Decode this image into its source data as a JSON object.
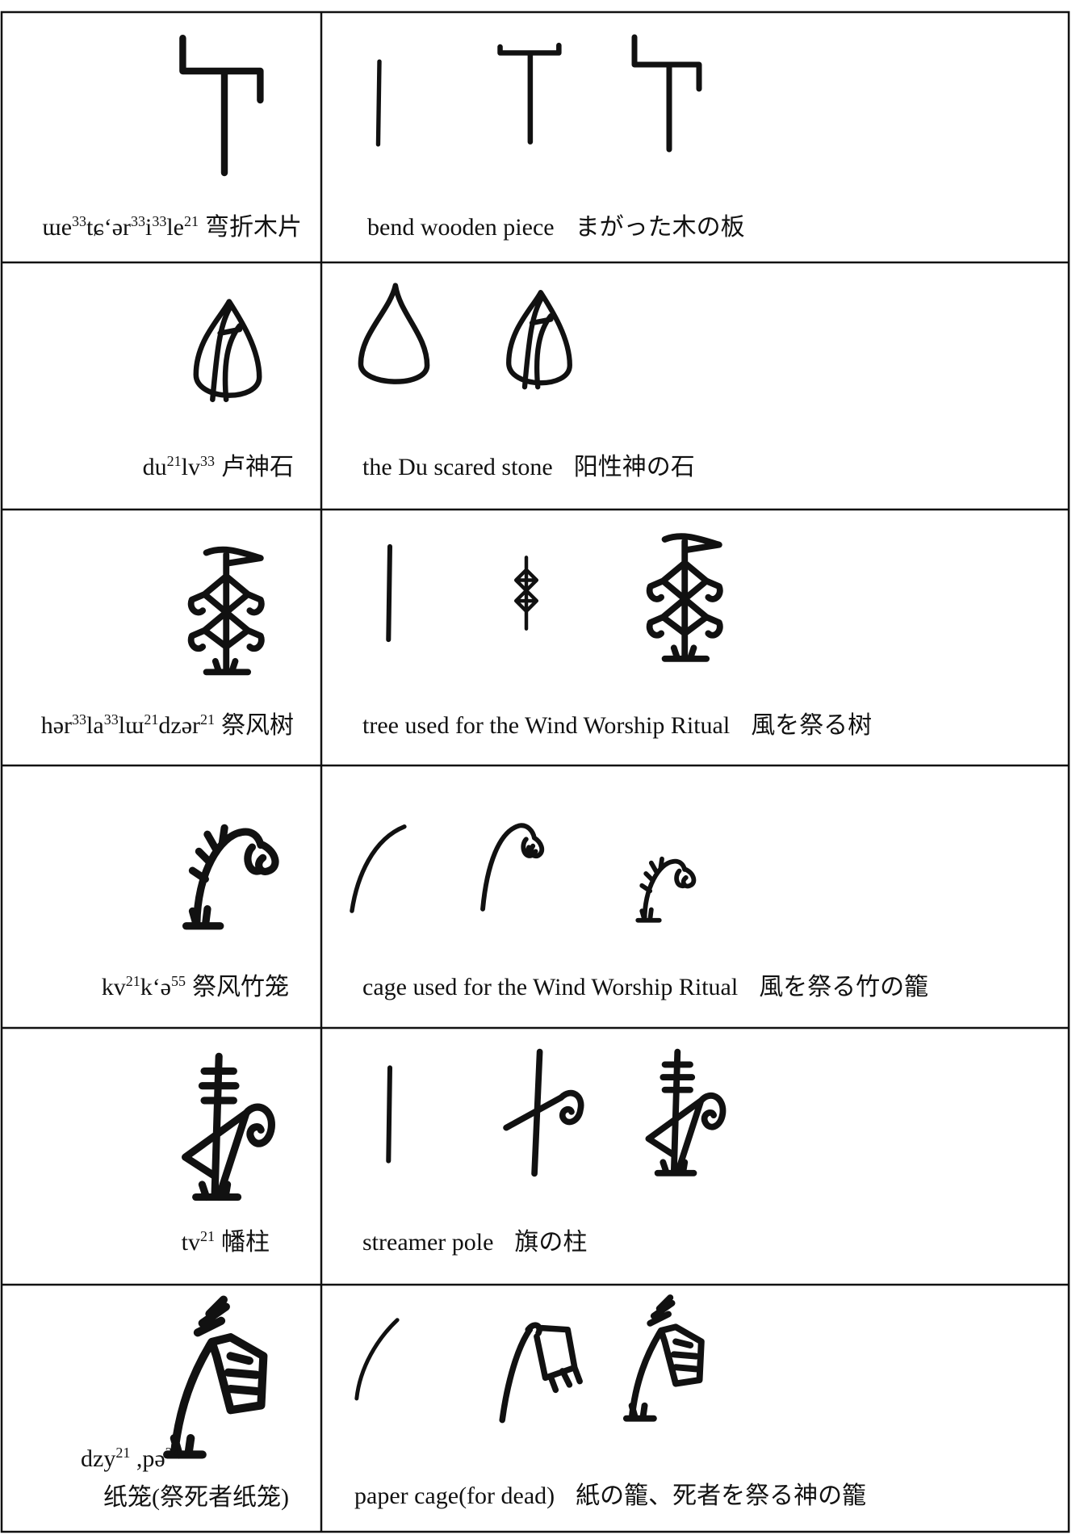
{
  "table": {
    "rows": [
      {
        "syllables": [
          {
            "text": "ɯe",
            "tone": "33"
          },
          {
            "text": "tɕʻər",
            "tone": "33"
          },
          {
            "text": "i",
            "tone": "33"
          },
          {
            "text": "le",
            "tone": "21"
          }
        ],
        "chinese": "弯折木片",
        "english": "bend wooden piece",
        "japanese": "まがった木の板"
      },
      {
        "syllables": [
          {
            "text": "du",
            "tone": "21"
          },
          {
            "text": "lv",
            "tone": "33"
          }
        ],
        "chinese": "卢神石",
        "english": "the Du scared stone",
        "japanese": "阳性神の石"
      },
      {
        "syllables": [
          {
            "text": "hər",
            "tone": "33"
          },
          {
            "text": "la",
            "tone": "33"
          },
          {
            "text": "lɯ",
            "tone": "21"
          },
          {
            "text": "dzər",
            "tone": "21"
          }
        ],
        "chinese": "祭风树",
        "english": "tree used for the Wind Worship Ritual",
        "japanese": "風を祭る树"
      },
      {
        "syllables": [
          {
            "text": "kv",
            "tone": "21"
          },
          {
            "text": "kʻə",
            "tone": "55"
          }
        ],
        "chinese": "祭风竹笼",
        "english": "cage used for the Wind Worship Ritual",
        "japanese": "風を祭る竹の籠"
      },
      {
        "syllables": [
          {
            "text": "tv",
            "tone": "21"
          }
        ],
        "chinese": "幡柱",
        "english": "streamer pole",
        "japanese": "旗の柱"
      },
      {
        "syllables": [
          {
            "text": "dzy",
            "tone": "21"
          },
          {
            "text": " ,pə",
            "tone": "24"
          }
        ],
        "chinese": "纸笼(祭死者纸笼)",
        "english": "paper cage(for dead)",
        "japanese": "紙の籠、死者を祭る神の籠"
      }
    ]
  }
}
